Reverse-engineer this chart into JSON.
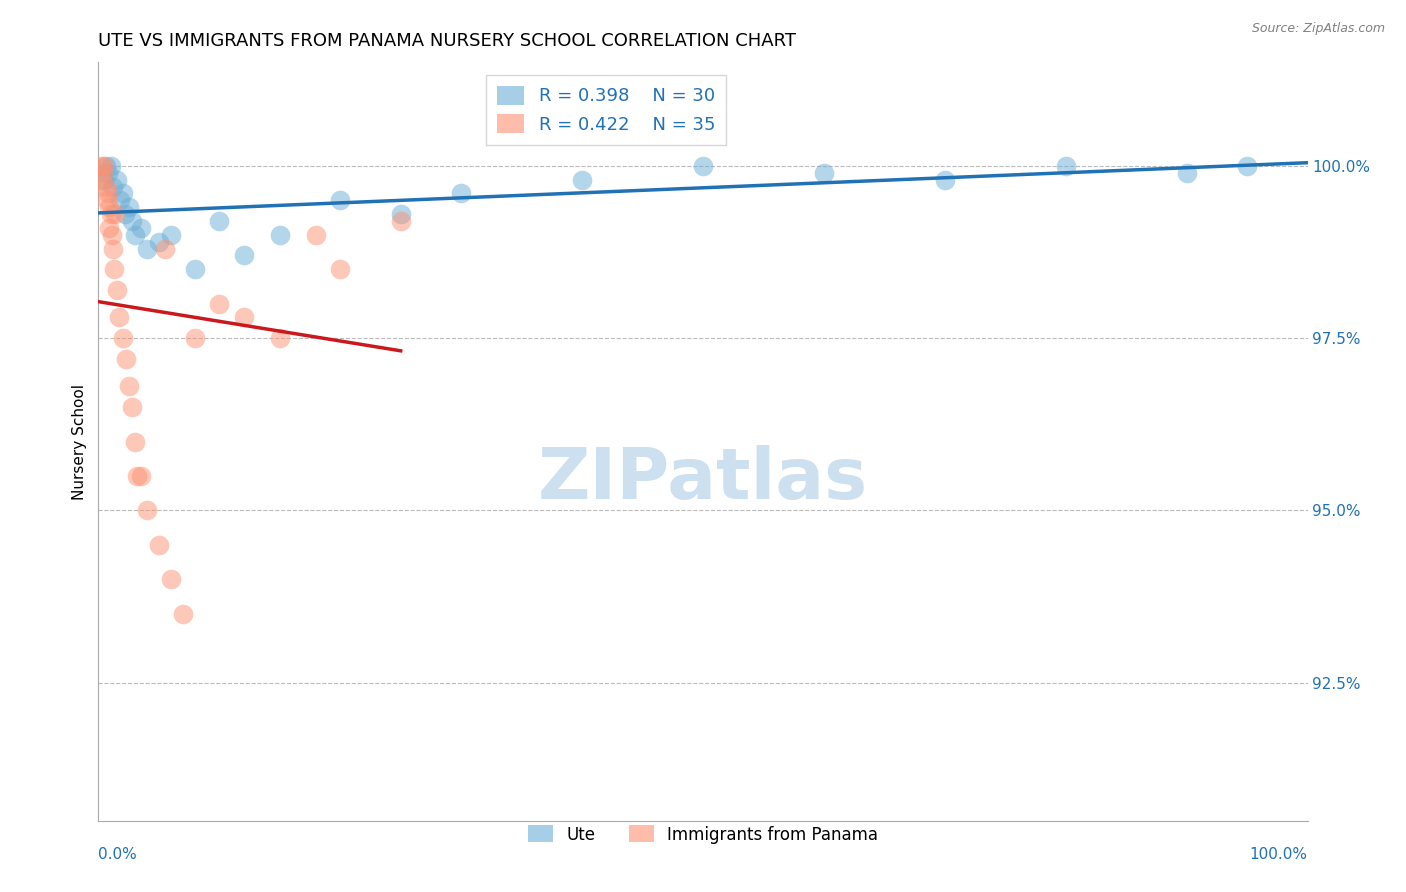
{
  "title": "UTE VS IMMIGRANTS FROM PANAMA NURSERY SCHOOL CORRELATION CHART",
  "source": "Source: ZipAtlas.com",
  "ylabel": "Nursery School",
  "ytick_labels": [
    "92.5%",
    "95.0%",
    "97.5%",
    "100.0%"
  ],
  "ytick_values": [
    92.5,
    95.0,
    97.5,
    100.0
  ],
  "xlim": [
    0.0,
    100.0
  ],
  "ylim": [
    90.5,
    101.5
  ],
  "legend_blue_label": "R = 0.398    N = 30",
  "legend_pink_label": "R = 0.422    N = 35",
  "blue_color": "#6baed6",
  "pink_color": "#fc9272",
  "blue_line_color": "#2171b5",
  "pink_line_color": "#cb181d",
  "grid_color": "#bbbbbb",
  "text_color": "#2171b5",
  "watermark_color": "#cce0f0",
  "ute_x": [
    0.5,
    0.6,
    0.8,
    1.0,
    1.2,
    1.5,
    1.8,
    2.0,
    2.2,
    2.5,
    2.8,
    3.0,
    3.5,
    4.0,
    5.0,
    6.0,
    8.0,
    10.0,
    12.0,
    15.0,
    20.0,
    25.0,
    30.0,
    40.0,
    50.0,
    60.0,
    70.0,
    80.0,
    90.0,
    95.0
  ],
  "ute_y": [
    99.8,
    100.0,
    99.9,
    100.0,
    99.7,
    99.8,
    99.5,
    99.6,
    99.3,
    99.4,
    99.2,
    99.0,
    99.1,
    98.8,
    98.9,
    99.0,
    98.5,
    99.2,
    98.7,
    99.0,
    99.5,
    99.3,
    99.6,
    99.8,
    100.0,
    99.9,
    99.8,
    100.0,
    99.9,
    100.0
  ],
  "panama_x": [
    0.2,
    0.3,
    0.4,
    0.5,
    0.6,
    0.7,
    0.8,
    0.9,
    1.0,
    1.1,
    1.2,
    1.3,
    1.5,
    1.7,
    2.0,
    2.3,
    2.5,
    2.8,
    3.0,
    3.5,
    4.0,
    5.0,
    6.0,
    7.0,
    8.0,
    10.0,
    12.0,
    15.0,
    18.0,
    20.0,
    25.0,
    5.5,
    3.2,
    0.9,
    1.4
  ],
  "panama_y": [
    100.0,
    99.8,
    99.9,
    100.0,
    99.7,
    99.5,
    99.6,
    99.4,
    99.3,
    99.0,
    98.8,
    98.5,
    98.2,
    97.8,
    97.5,
    97.2,
    96.8,
    96.5,
    96.0,
    95.5,
    95.0,
    94.5,
    94.0,
    93.5,
    97.5,
    98.0,
    97.8,
    97.5,
    99.0,
    98.5,
    99.2,
    98.8,
    95.5,
    99.1,
    99.3
  ]
}
